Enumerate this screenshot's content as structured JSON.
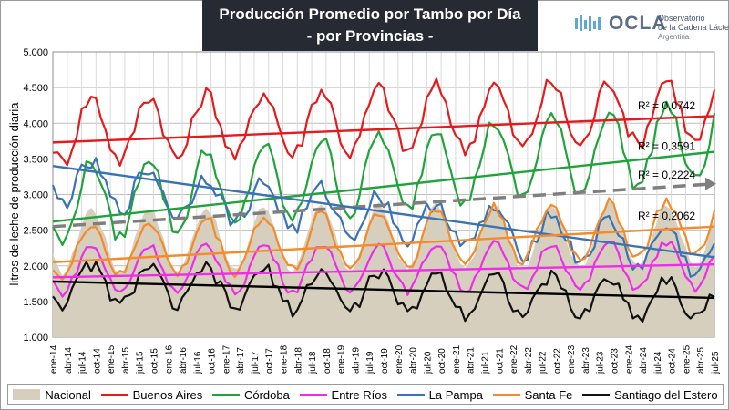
{
  "title_line1": "Producción Promedio por Tambo por Día",
  "title_line2": "- por Provincias -",
  "logo": {
    "name": "OCLA",
    "subtitle1": "Observatorio",
    "subtitle2": "de la Cadena Láctea",
    "subtitle3": "Argentina",
    "icon": "wave-bars-icon"
  },
  "colors": {
    "Nacional": "#d6cfbd",
    "Buenos Aires": "#e41a1c",
    "Córdoba": "#1fa33a",
    "Entre Ríos": "#ee2de8",
    "La Pampa": "#3a73b5",
    "Santa Fe": "#f58a2a",
    "Santiago del Estero": "#111111",
    "trend_nacional": "#7f7f7f"
  },
  "chart_data": {
    "type": "line",
    "ylabel": "litros de leche de producción diaria",
    "ylim": [
      1.0,
      5.0
    ],
    "yticks": [
      "1.000",
      "1.500",
      "2.000",
      "2.500",
      "3.000",
      "3.500",
      "4.000",
      "4.500",
      "5.000"
    ],
    "x_start": "2014-01",
    "x_end": "2025-07",
    "xticks": [
      "ene-14",
      "abr-14",
      "jul-14",
      "oct-14",
      "ene-15",
      "abr-15",
      "jul-15",
      "oct-15",
      "ene-16",
      "abr-16",
      "jul-16",
      "oct-16",
      "ene-17",
      "abr-17",
      "jul-17",
      "oct-17",
      "ene-18",
      "abr-18",
      "jul-18",
      "oct-18",
      "ene-19",
      "abr-19",
      "jul-19",
      "oct-19",
      "ene-20",
      "abr-20",
      "jul-20",
      "oct-20",
      "ene-21",
      "abr-21",
      "jul-21",
      "oct-21",
      "ene-22",
      "abr-22",
      "jul-22",
      "oct-22",
      "ene-23",
      "abr-23",
      "jul-23",
      "oct-23",
      "ene-24",
      "abr-24",
      "jul-24",
      "oct-24",
      "ene-25",
      "abr-25",
      "jul-25"
    ],
    "grid": true,
    "legend_position": "bottom",
    "series": [
      {
        "name": "Nacional",
        "style": "area",
        "base": 2.35,
        "amp": 0.45,
        "trend": 0.008,
        "noise": 0.05
      },
      {
        "name": "Buenos Aires",
        "style": "line",
        "base": 3.9,
        "amp": 0.45,
        "trend": 0.025,
        "noise": 0.12
      },
      {
        "name": "Córdoba",
        "style": "line",
        "base": 2.85,
        "amp": 0.55,
        "trend": 0.08,
        "noise": 0.1
      },
      {
        "name": "Entre Ríos",
        "style": "line",
        "base": 1.95,
        "amp": 0.33,
        "trend": 0.005,
        "noise": 0.06
      },
      {
        "name": "La Pampa",
        "style": "line",
        "base": 3.2,
        "amp": 0.3,
        "trend": -0.09,
        "noise": 0.12
      },
      {
        "name": "Santa Fe",
        "style": "line",
        "base": 2.2,
        "amp": 0.38,
        "trend": 0.03,
        "noise": 0.08
      },
      {
        "name": "Santiago del Estero",
        "style": "line",
        "base": 1.75,
        "amp": 0.28,
        "trend": -0.02,
        "noise": 0.1
      }
    ],
    "trendlines": [
      {
        "series": "Buenos Aires",
        "y_start": 3.73,
        "y_end": 4.1,
        "label": "R² = 0,0742",
        "label_y": 4.17
      },
      {
        "series": "Córdoba",
        "y_start": 2.62,
        "y_end": 3.6,
        "label": "R² = 0,3591",
        "label_y": 3.6
      },
      {
        "series": "Nacional",
        "y_start": 2.55,
        "y_end": 3.15,
        "label": "R² = 0,2224",
        "label_y": 3.2,
        "dashed": true
      },
      {
        "series": "La Pampa",
        "y_start": 3.4,
        "y_end": 2.12,
        "label": "",
        "label_y": 0
      },
      {
        "series": "Santa Fe",
        "y_start": 2.05,
        "y_end": 2.55,
        "label": "R² = 0,2062",
        "label_y": 2.62
      },
      {
        "series": "Entre Ríos",
        "y_start": 1.84,
        "y_end": 2.02,
        "label": "",
        "label_y": 0
      },
      {
        "series": "Santiago del Estero",
        "y_start": 1.78,
        "y_end": 1.55,
        "label": "",
        "label_y": 0
      }
    ]
  },
  "legend": [
    {
      "label": "Nacional",
      "kind": "area"
    },
    {
      "label": "Buenos Aires",
      "kind": "line"
    },
    {
      "label": "Córdoba",
      "kind": "line"
    },
    {
      "label": "Entre Ríos",
      "kind": "line"
    },
    {
      "label": "La Pampa",
      "kind": "line"
    },
    {
      "label": "Santa Fe",
      "kind": "line"
    },
    {
      "label": "Santiago del Estero",
      "kind": "line"
    }
  ]
}
